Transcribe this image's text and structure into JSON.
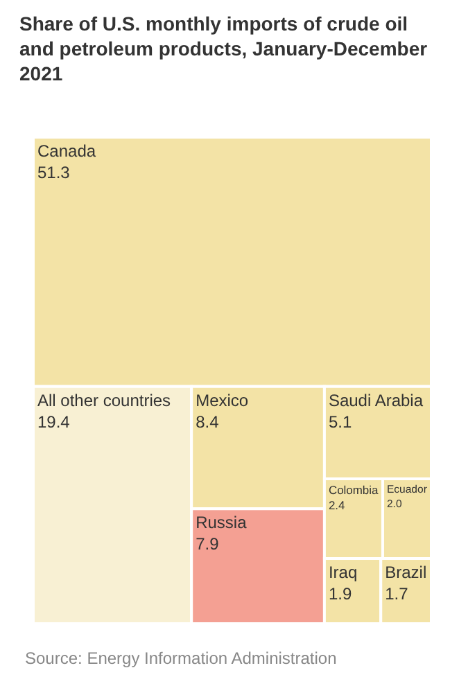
{
  "chart_data": {
    "type": "other",
    "title": "Share of U.S. monthly imports of crude oil and petroleum products, January-December 2021",
    "categories": [
      "Canada",
      "Mexico",
      "Russia",
      "Colombia",
      "Ecuador",
      "Iraq",
      "Brazil",
      "Saudi Arabia",
      "All other countries"
    ],
    "values": [
      51.3,
      8.4,
      7.9,
      2.4,
      2.0,
      1.9,
      1.7,
      5.1,
      19.4
    ],
    "value_labels": [
      "51.3",
      "8.4",
      "7.9",
      "2.4",
      "2.0",
      "1.9",
      "1.7",
      "5.1",
      "19.4"
    ],
    "colors": [
      "#f3e3a6",
      "#f3e3a6",
      "#f4a093",
      "#f3e3a6",
      "#f3e3a6",
      "#f3e3a6",
      "#f3e3a6",
      "#f3e3a6",
      "#f8f0d3"
    ],
    "annotations": [
      "Source: Energy Information Administration"
    ]
  }
}
